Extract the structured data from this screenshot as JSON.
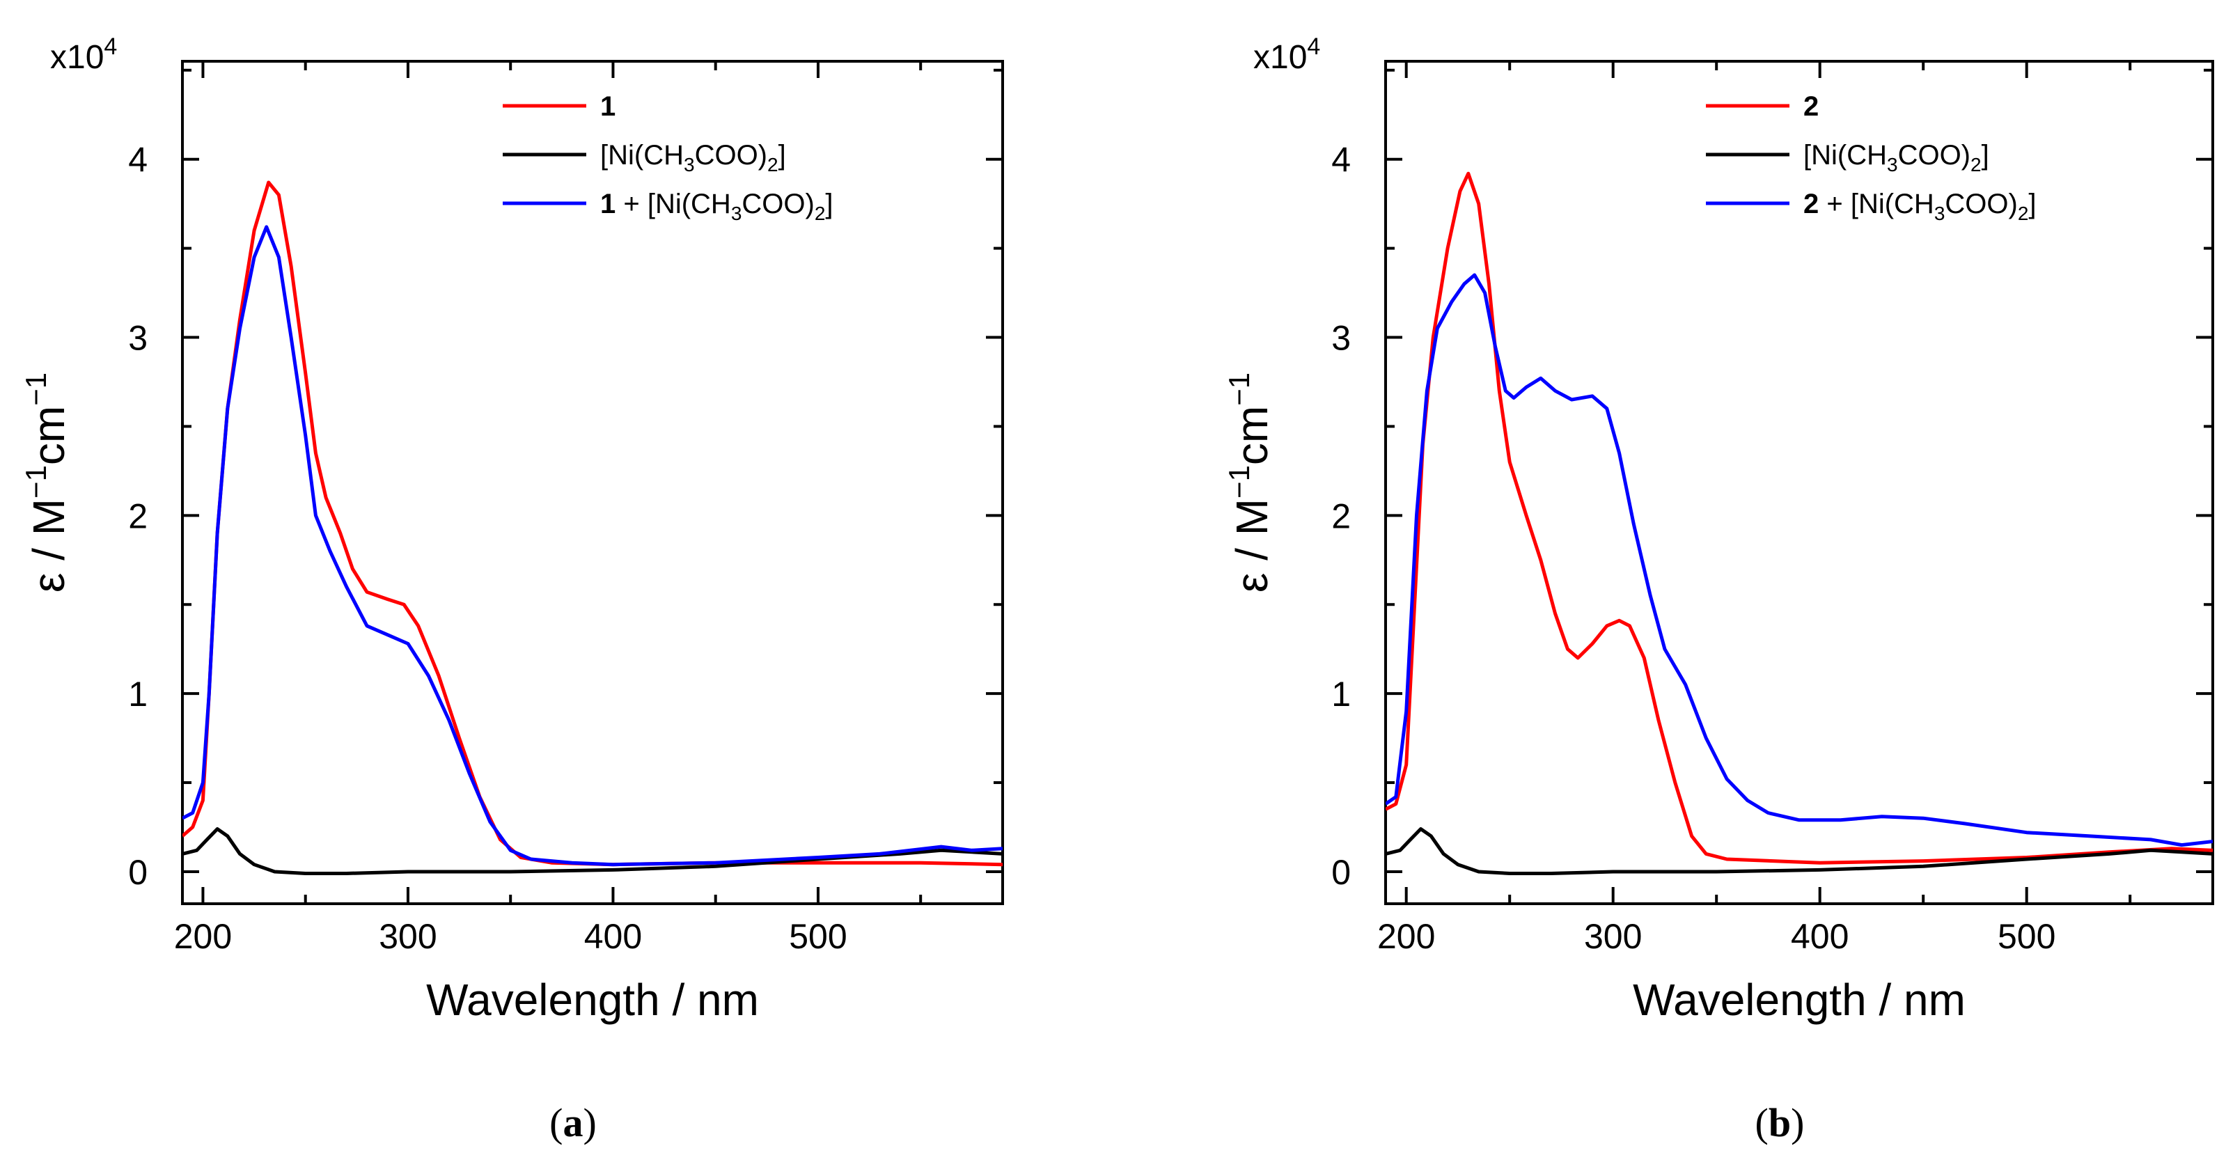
{
  "chart_data": [
    {
      "type": "line",
      "panel_label": "a",
      "multiplier": {
        "base": "x10",
        "exp": "4"
      },
      "xlabel": "Wavelength / nm",
      "ylabel": {
        "pre": "ε / M",
        "sup1": "−1",
        "mid": "cm",
        "sup2": "−1"
      },
      "xlim": [
        190,
        590
      ],
      "ylim": [
        -0.18,
        4.55
      ],
      "x_ticks": [
        200,
        300,
        400,
        500
      ],
      "y_ticks": [
        0,
        1,
        2,
        3,
        4
      ],
      "legend": [
        {
          "id": "l1",
          "color": "#ff0000",
          "bold": "1",
          "sub": "",
          "text": "",
          "sub_post": "",
          "tail": ""
        },
        {
          "id": "l2",
          "color": "#000000",
          "bold": "",
          "pre": "[Ni(CH",
          "sub": "3",
          "text": "COO)",
          "sub_post": "2",
          "tail": "]"
        },
        {
          "id": "l3",
          "color": "#0000ff",
          "bold": "1",
          "pre": " + [Ni(CH",
          "sub": "3",
          "text": "COO)",
          "sub_post": "2",
          "tail": "]"
        }
      ],
      "series": [
        {
          "name": "1",
          "color": "#ff0000",
          "points": [
            [
              190,
              0.2
            ],
            [
              195,
              0.25
            ],
            [
              200,
              0.4
            ],
            [
              203,
              1.0
            ],
            [
              207,
              1.9
            ],
            [
              212,
              2.6
            ],
            [
              218,
              3.1
            ],
            [
              225,
              3.6
            ],
            [
              232,
              3.87
            ],
            [
              237,
              3.8
            ],
            [
              243,
              3.4
            ],
            [
              250,
              2.8
            ],
            [
              255,
              2.35
            ],
            [
              260,
              2.1
            ],
            [
              267,
              1.9
            ],
            [
              273,
              1.7
            ],
            [
              280,
              1.57
            ],
            [
              290,
              1.53
            ],
            [
              298,
              1.5
            ],
            [
              305,
              1.38
            ],
            [
              315,
              1.1
            ],
            [
              325,
              0.75
            ],
            [
              335,
              0.42
            ],
            [
              345,
              0.18
            ],
            [
              355,
              0.08
            ],
            [
              370,
              0.05
            ],
            [
              400,
              0.04
            ],
            [
              450,
              0.05
            ],
            [
              500,
              0.05
            ],
            [
              550,
              0.05
            ],
            [
              590,
              0.04
            ]
          ]
        },
        {
          "name": "[Ni(CH3COO)2]",
          "color": "#000000",
          "points": [
            [
              190,
              0.1
            ],
            [
              197,
              0.12
            ],
            [
              202,
              0.18
            ],
            [
              207,
              0.24
            ],
            [
              212,
              0.2
            ],
            [
              218,
              0.1
            ],
            [
              225,
              0.04
            ],
            [
              235,
              0.0
            ],
            [
              250,
              -0.01
            ],
            [
              270,
              -0.01
            ],
            [
              300,
              0.0
            ],
            [
              350,
              0.0
            ],
            [
              400,
              0.01
            ],
            [
              450,
              0.03
            ],
            [
              500,
              0.07
            ],
            [
              540,
              0.1
            ],
            [
              560,
              0.12
            ],
            [
              575,
              0.11
            ],
            [
              590,
              0.1
            ]
          ]
        },
        {
          "name": "1 + [Ni(CH3COO)2]",
          "color": "#0000ff",
          "points": [
            [
              190,
              0.3
            ],
            [
              195,
              0.33
            ],
            [
              200,
              0.5
            ],
            [
              203,
              1.0
            ],
            [
              207,
              1.9
            ],
            [
              212,
              2.6
            ],
            [
              218,
              3.05
            ],
            [
              225,
              3.45
            ],
            [
              231,
              3.62
            ],
            [
              237,
              3.45
            ],
            [
              243,
              3.0
            ],
            [
              250,
              2.45
            ],
            [
              255,
              2.0
            ],
            [
              262,
              1.8
            ],
            [
              270,
              1.6
            ],
            [
              280,
              1.38
            ],
            [
              290,
              1.33
            ],
            [
              300,
              1.28
            ],
            [
              310,
              1.1
            ],
            [
              320,
              0.85
            ],
            [
              330,
              0.55
            ],
            [
              340,
              0.28
            ],
            [
              350,
              0.12
            ],
            [
              360,
              0.07
            ],
            [
              380,
              0.05
            ],
            [
              400,
              0.04
            ],
            [
              450,
              0.05
            ],
            [
              500,
              0.08
            ],
            [
              530,
              0.1
            ],
            [
              560,
              0.14
            ],
            [
              575,
              0.12
            ],
            [
              590,
              0.13
            ]
          ]
        }
      ]
    },
    {
      "type": "line",
      "panel_label": "b",
      "multiplier": {
        "base": "x10",
        "exp": "4"
      },
      "xlabel": "Wavelength / nm",
      "ylabel": {
        "pre": "ε / M",
        "sup1": "−1",
        "mid": "cm",
        "sup2": "−1"
      },
      "xlim": [
        190,
        590
      ],
      "ylim": [
        -0.18,
        4.55
      ],
      "x_ticks": [
        200,
        300,
        400,
        500
      ],
      "y_ticks": [
        0,
        1,
        2,
        3,
        4
      ],
      "legend": [
        {
          "id": "l1",
          "color": "#ff0000",
          "bold": "2",
          "sub": "",
          "text": "",
          "sub_post": "",
          "tail": ""
        },
        {
          "id": "l2",
          "color": "#000000",
          "bold": "",
          "pre": "[Ni(CH",
          "sub": "3",
          "text": "COO)",
          "sub_post": "2",
          "tail": "]"
        },
        {
          "id": "l3",
          "color": "#0000ff",
          "bold": "2",
          "pre": " + [Ni(CH",
          "sub": "3",
          "text": "COO)",
          "sub_post": "2",
          "tail": "]"
        }
      ],
      "series": [
        {
          "name": "2",
          "color": "#ff0000",
          "points": [
            [
              190,
              0.35
            ],
            [
              195,
              0.38
            ],
            [
              200,
              0.6
            ],
            [
              204,
              1.5
            ],
            [
              208,
              2.4
            ],
            [
              213,
              3.0
            ],
            [
              220,
              3.5
            ],
            [
              226,
              3.82
            ],
            [
              230,
              3.92
            ],
            [
              235,
              3.75
            ],
            [
              240,
              3.3
            ],
            [
              245,
              2.7
            ],
            [
              250,
              2.3
            ],
            [
              258,
              2.0
            ],
            [
              265,
              1.75
            ],
            [
              272,
              1.45
            ],
            [
              278,
              1.25
            ],
            [
              283,
              1.2
            ],
            [
              290,
              1.28
            ],
            [
              297,
              1.38
            ],
            [
              303,
              1.41
            ],
            [
              308,
              1.38
            ],
            [
              315,
              1.2
            ],
            [
              322,
              0.85
            ],
            [
              330,
              0.5
            ],
            [
              338,
              0.2
            ],
            [
              345,
              0.1
            ],
            [
              355,
              0.07
            ],
            [
              400,
              0.05
            ],
            [
              450,
              0.06
            ],
            [
              500,
              0.08
            ],
            [
              540,
              0.11
            ],
            [
              570,
              0.13
            ],
            [
              590,
              0.12
            ]
          ]
        },
        {
          "name": "[Ni(CH3COO)2]",
          "color": "#000000",
          "points": [
            [
              190,
              0.1
            ],
            [
              197,
              0.12
            ],
            [
              202,
              0.18
            ],
            [
              207,
              0.24
            ],
            [
              212,
              0.2
            ],
            [
              218,
              0.1
            ],
            [
              225,
              0.04
            ],
            [
              235,
              0.0
            ],
            [
              250,
              -0.01
            ],
            [
              270,
              -0.01
            ],
            [
              300,
              0.0
            ],
            [
              350,
              0.0
            ],
            [
              400,
              0.01
            ],
            [
              450,
              0.03
            ],
            [
              500,
              0.07
            ],
            [
              540,
              0.1
            ],
            [
              560,
              0.12
            ],
            [
              575,
              0.11
            ],
            [
              590,
              0.1
            ]
          ]
        },
        {
          "name": "2 + [Ni(CH3COO)2]",
          "color": "#0000ff",
          "points": [
            [
              190,
              0.38
            ],
            [
              195,
              0.42
            ],
            [
              200,
              0.9
            ],
            [
              205,
              2.0
            ],
            [
              210,
              2.7
            ],
            [
              215,
              3.05
            ],
            [
              222,
              3.2
            ],
            [
              228,
              3.3
            ],
            [
              233,
              3.35
            ],
            [
              238,
              3.25
            ],
            [
              243,
              2.95
            ],
            [
              248,
              2.7
            ],
            [
              252,
              2.66
            ],
            [
              258,
              2.72
            ],
            [
              265,
              2.77
            ],
            [
              272,
              2.7
            ],
            [
              280,
              2.65
            ],
            [
              290,
              2.67
            ],
            [
              297,
              2.6
            ],
            [
              303,
              2.35
            ],
            [
              310,
              1.95
            ],
            [
              318,
              1.55
            ],
            [
              325,
              1.25
            ],
            [
              335,
              1.05
            ],
            [
              345,
              0.75
            ],
            [
              355,
              0.52
            ],
            [
              365,
              0.4
            ],
            [
              375,
              0.33
            ],
            [
              390,
              0.29
            ],
            [
              410,
              0.29
            ],
            [
              430,
              0.31
            ],
            [
              450,
              0.3
            ],
            [
              470,
              0.27
            ],
            [
              500,
              0.22
            ],
            [
              530,
              0.2
            ],
            [
              560,
              0.18
            ],
            [
              575,
              0.15
            ],
            [
              590,
              0.17
            ]
          ]
        }
      ]
    }
  ]
}
